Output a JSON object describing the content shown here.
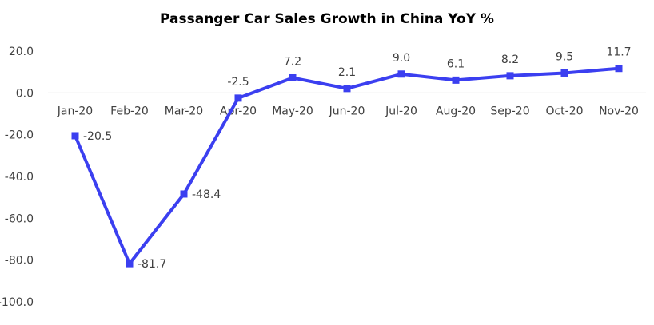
{
  "chart_data": {
    "type": "line",
    "title": "Passanger Car Sales Growth in China YoY %",
    "categories": [
      "Jan-20",
      "Feb-20",
      "Mar-20",
      "Apr-20",
      "May-20",
      "Jun-20",
      "Jul-20",
      "Aug-20",
      "Sep-20",
      "Oct-20",
      "Nov-20"
    ],
    "series": [
      {
        "values": [
          -20.5,
          -81.7,
          -48.4,
          -2.5,
          7.2,
          2.1,
          9.0,
          6.1,
          8.2,
          9.5,
          11.7
        ],
        "value_labels": [
          "-20.5",
          "-81.7",
          "-48.4",
          "-2.5",
          "7.2",
          "2.1",
          "9.0",
          "6.1",
          "8.2",
          "9.5",
          "11.7"
        ],
        "color": "#3B3FF0",
        "marker": "square"
      }
    ],
    "y_ticks": [
      20,
      0,
      -20,
      -40,
      -60,
      -80,
      -100
    ],
    "y_tick_labels": [
      "20.0",
      "0.0",
      "-20.0",
      "-40.0",
      "-60.0",
      "-80.0",
      "-100.0"
    ],
    "ylim": [
      -100,
      20
    ],
    "grid": false,
    "legend": "none"
  }
}
